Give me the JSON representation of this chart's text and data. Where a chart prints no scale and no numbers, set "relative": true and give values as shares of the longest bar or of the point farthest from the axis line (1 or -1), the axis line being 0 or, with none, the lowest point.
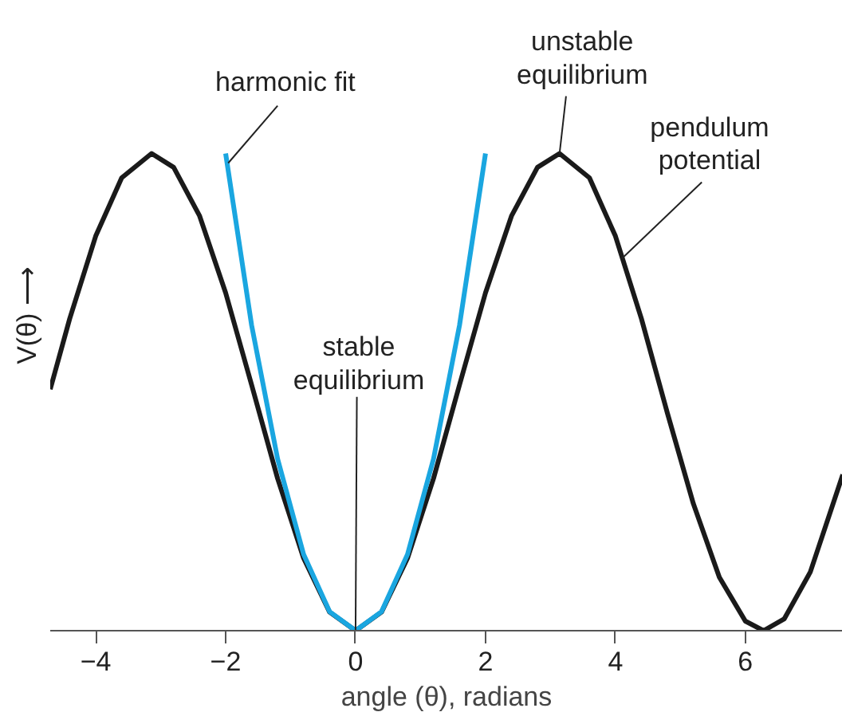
{
  "chart_data": {
    "type": "line",
    "relative": true,
    "xlabel": "angle (θ), radians",
    "ylabel": "V(θ) ⟶",
    "xlim": [
      -4.7,
      7.5
    ],
    "xticks": [
      {
        "value": -4,
        "label": "−4"
      },
      {
        "value": -2,
        "label": "−2"
      },
      0,
      2,
      4,
      6
    ],
    "marker": "none",
    "line_style": "solid",
    "series": [
      {
        "color": "#1a1a1a",
        "x": [
          -4.7,
          -4.4,
          -4.0,
          -3.6,
          -3.14,
          -2.8,
          -2.4,
          -2.0,
          -1.6,
          -1.2,
          -0.8,
          -0.4,
          0,
          0.4,
          0.8,
          1.2,
          1.6,
          2.0,
          2.4,
          2.8,
          3.14,
          3.6,
          4.0,
          4.4,
          4.8,
          5.2,
          5.6,
          6.0,
          6.28,
          6.6,
          7.0,
          7.5
        ],
        "values": [
          0.506,
          0.654,
          0.827,
          0.949,
          1,
          0.971,
          0.869,
          0.708,
          0.515,
          0.319,
          0.152,
          0.039,
          0,
          0.039,
          0.152,
          0.319,
          0.515,
          0.708,
          0.869,
          0.971,
          1,
          0.949,
          0.827,
          0.654,
          0.456,
          0.266,
          0.112,
          0.02,
          0,
          0.025,
          0.123,
          0.327
        ]
      },
      {
        "color": "#1aa6e0",
        "x": [
          -2.0,
          -1.6,
          -1.2,
          -0.8,
          -0.4,
          0,
          0.4,
          0.8,
          1.2,
          1.6,
          2.0
        ],
        "values": [
          1,
          0.64,
          0.36,
          0.16,
          0.04,
          0,
          0.04,
          0.16,
          0.36,
          0.64,
          1
        ]
      }
    ],
    "annotations": [
      {
        "text": "harmonic fit",
        "x": -1.96,
        "y": 0.98
      },
      {
        "text": "unstable\nequilibrium",
        "x": 3.14,
        "y": 1
      },
      {
        "text": "pendulum\npotential",
        "x": 4.1,
        "y": 0.78
      },
      {
        "text": "stable\nequilibrium",
        "x": 0,
        "y": 0
      }
    ]
  }
}
